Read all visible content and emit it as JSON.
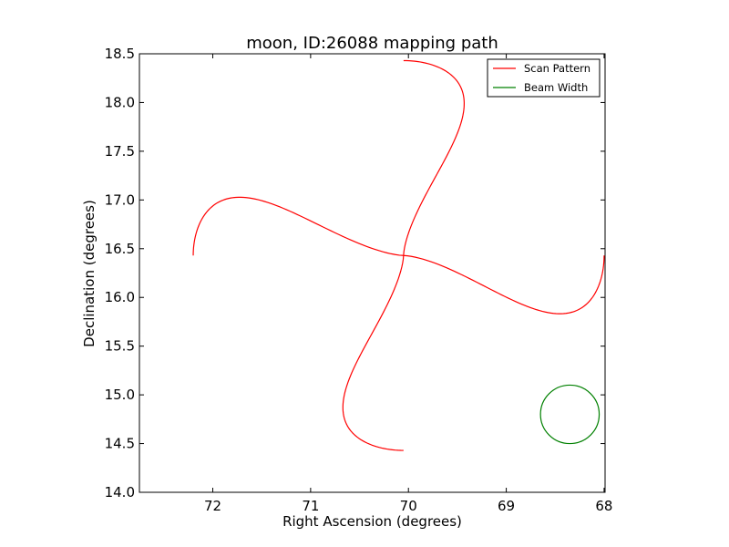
{
  "chart_data": {
    "type": "line",
    "title": "moon, ID:26088 mapping path",
    "xlabel": "Right Ascension (degrees)",
    "ylabel": "Declination (degrees)",
    "xlim": [
      72.75,
      67.99
    ],
    "ylim": [
      14.0,
      18.5
    ],
    "x_inverted": true,
    "xticks": [
      72,
      71,
      70,
      69,
      68
    ],
    "xtick_labels": [
      "72",
      "71",
      "70",
      "69",
      "68"
    ],
    "yticks": [
      14.0,
      14.5,
      15.0,
      15.5,
      16.0,
      16.5,
      17.0,
      17.5,
      18.0,
      18.5
    ],
    "ytick_labels": [
      "14.0",
      "14.5",
      "15.0",
      "15.5",
      "16.0",
      "16.5",
      "17.0",
      "17.5",
      "18.0",
      "18.5"
    ],
    "grid": false,
    "legend_position": "top-right",
    "series": [
      {
        "name": "Scan Pattern",
        "color": "#ff0000",
        "kind": "four-petal rose",
        "center": {
          "ra": 70.05,
          "dec": 16.43
        },
        "lobes": [
          {
            "direction": "north",
            "tip": {
              "ra": 70.05,
              "dec": 18.43
            },
            "half_width_deg": 0.56
          },
          {
            "direction": "south",
            "tip": {
              "ra": 70.05,
              "dec": 14.43
            },
            "half_width_deg": 0.56
          },
          {
            "direction": "east",
            "tip": {
              "ra": 72.2,
              "dec": 16.43
            },
            "half_height_deg": 0.54
          },
          {
            "direction": "west",
            "tip": {
              "ra": 68.0,
              "dec": 16.43
            },
            "half_height_deg": 0.54
          }
        ]
      },
      {
        "name": "Beam Width",
        "color": "#008000",
        "kind": "circle",
        "center": {
          "ra": 68.35,
          "dec": 14.8
        },
        "radius_deg": 0.3
      }
    ]
  }
}
